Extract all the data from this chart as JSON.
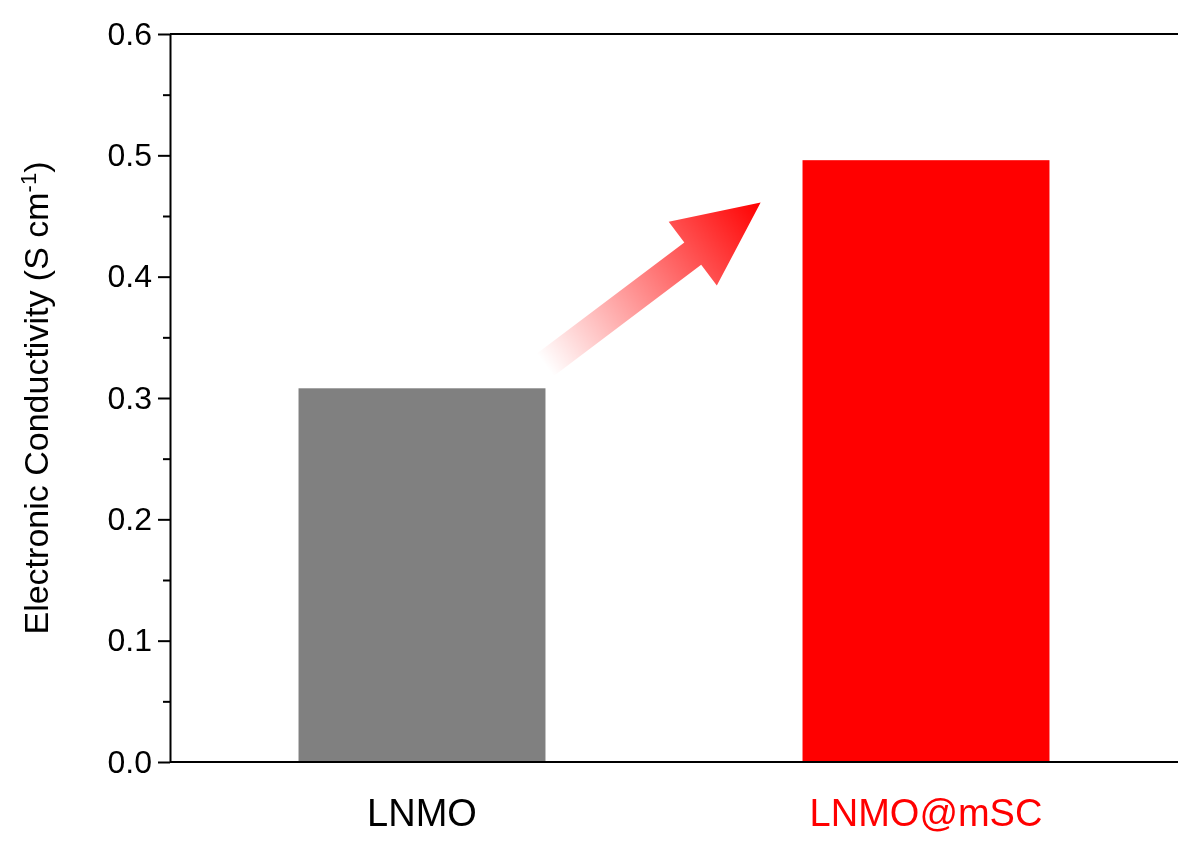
{
  "chart_data": {
    "type": "bar",
    "ylabel": "Electronic  Conductivity (S cm$^{-1}$)",
    "categories": [
      "LNMO",
      "LNMO@mSC"
    ],
    "values": [
      0.308,
      0.496
    ],
    "colors": [
      "#808080",
      "#ff0000"
    ],
    "ylim": [
      0,
      0.6
    ],
    "yticks": [
      {
        "value": 0,
        "label": "0.0"
      },
      {
        "value": 0.05,
        "label": null
      },
      {
        "value": 0.1,
        "label": "0.1"
      },
      {
        "value": 0.15,
        "label": null
      },
      {
        "value": 0.2,
        "label": "0.2"
      },
      {
        "value": 0.25,
        "label": null
      },
      {
        "value": 0.3,
        "label": "0.3"
      },
      {
        "value": 0.35,
        "label": null
      },
      {
        "value": 0.4,
        "label": "0.4"
      },
      {
        "value": 0.45,
        "label": null
      },
      {
        "value": 0.5,
        "label": "0.5"
      },
      {
        "value": 0.55,
        "label": null
      },
      {
        "value": 0.6,
        "label": "0.6"
      }
    ],
    "grid": false
  }
}
